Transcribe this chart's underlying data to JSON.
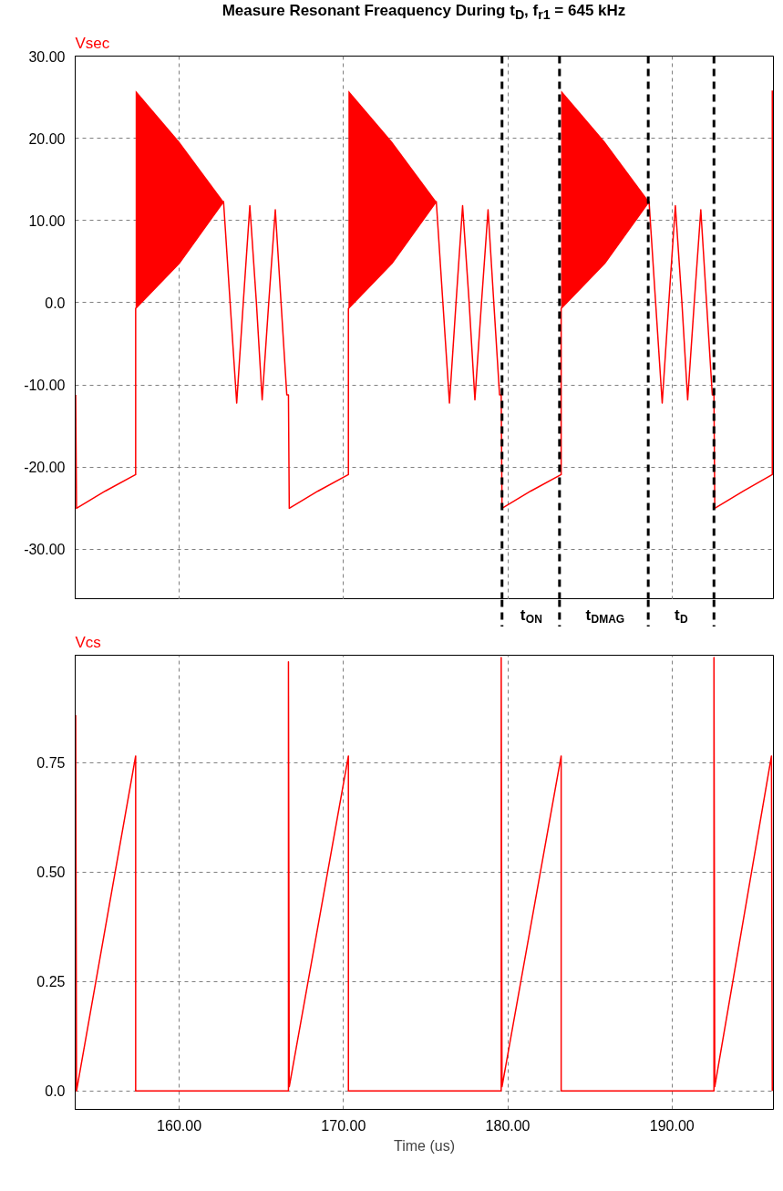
{
  "chart_data": [
    {
      "type": "line",
      "title": "Measure Resonant Freaquency During t$_{D}$, f$_{r1}$ = 645 kHz",
      "series": [
        {
          "name": "Vsec",
          "color": "#ff0000",
          "x": [
            153.7,
            153.75,
            155.5,
            157.35,
            157.35,
            160.0,
            162.7,
            163.1,
            163.5,
            163.9,
            164.3,
            164.7,
            165.05,
            165.45,
            165.85,
            166.2,
            166.55,
            166.65,
            166.7,
            168.45,
            170.3,
            170.3,
            172.95,
            175.65,
            176.05,
            176.45,
            176.85,
            177.25,
            177.65,
            178.0,
            178.4,
            178.8,
            179.15,
            179.5,
            179.6,
            179.65,
            181.4,
            183.25,
            183.25,
            185.9,
            188.6,
            189.0,
            189.4,
            189.8,
            190.2,
            190.6,
            190.95,
            191.35,
            191.75,
            192.1,
            192.45,
            192.55,
            192.6,
            194.35,
            196.1,
            196.1
          ],
          "values": [
            -11.2,
            -25,
            -22.9,
            -20.9,
            -0.7,
            4.8,
            12.3,
            0,
            -12.2,
            0,
            11.8,
            0,
            -11.8,
            0,
            11.3,
            0,
            -11.2,
            -11.2,
            -25,
            -22.9,
            -20.9,
            -0.7,
            4.8,
            12.3,
            0,
            -12.2,
            0,
            11.8,
            0,
            -11.8,
            0,
            11.3,
            0,
            -11.2,
            -11.2,
            -25,
            -22.9,
            -20.9,
            -0.7,
            4.8,
            12.3,
            0,
            -12.2,
            0,
            11.8,
            0,
            -11.8,
            0,
            11.3,
            0,
            -11.2,
            -11.2,
            -25,
            -22.9,
            -20.9,
            25.8
          ],
          "lower": [
            null,
            null,
            null,
            null,
            -0.7,
            4.8,
            12.3,
            null,
            null,
            null,
            null,
            null,
            null,
            null,
            null,
            null,
            null,
            null,
            null,
            null,
            null,
            -0.7,
            4.8,
            12.3,
            null,
            null,
            null,
            null,
            null,
            null,
            null,
            null,
            null,
            null,
            null,
            null,
            null,
            null,
            -0.7,
            4.8,
            12.3,
            null,
            null,
            null,
            null,
            null,
            null,
            null,
            null,
            null,
            null,
            null,
            null,
            null,
            null,
            null
          ],
          "upper": [
            null,
            null,
            null,
            null,
            25.8,
            19.6,
            12.3,
            null,
            null,
            null,
            null,
            null,
            null,
            null,
            null,
            null,
            null,
            null,
            null,
            null,
            null,
            25.8,
            19.6,
            12.3,
            null,
            null,
            null,
            null,
            null,
            null,
            null,
            null,
            null,
            null,
            null,
            null,
            null,
            null,
            25.8,
            19.6,
            12.3,
            null,
            null,
            null,
            null,
            null,
            null,
            null,
            null,
            null,
            null,
            null,
            null,
            null,
            null,
            null
          ]
        }
      ],
      "xlim": [
        153.67,
        196.17
      ],
      "xticks": [
        160,
        170,
        180,
        190
      ],
      "ylim": [
        -36.1,
        30
      ],
      "yticks": [
        {
          "value": 30,
          "label": "30.00"
        },
        {
          "value": 20,
          "label": "20.00"
        },
        {
          "value": 10,
          "label": "10.00"
        },
        {
          "value": 0,
          "label": "0.0"
        },
        {
          "value": -10,
          "label": "-10.00"
        },
        {
          "value": -20,
          "label": "-20.00"
        },
        {
          "value": -30,
          "label": "-30.00"
        }
      ],
      "tick_labels": "y",
      "grid": true,
      "ref_lines": [
        {
          "axis": "x",
          "value": 179.65,
          "color": "#000000",
          "line_style": "dashed"
        },
        {
          "axis": "x",
          "value": 183.15,
          "color": "#000000",
          "line_style": "dashed"
        },
        {
          "axis": "x",
          "value": 188.55,
          "color": "#000000",
          "line_style": "dashed"
        },
        {
          "axis": "x",
          "value": 192.55,
          "color": "#000000",
          "line_style": "dashed"
        }
      ],
      "annotations": [
        "t$_{ON}$",
        "t$_{DMAG}$",
        "t$_{D}$"
      ]
    },
    {
      "type": "line",
      "xlabel": "Time (us)",
      "series": [
        {
          "name": "Vcs",
          "color": "#ff0000",
          "x": [
            153.7,
            153.7,
            153.75,
            157.35,
            157.35,
            166.65,
            166.65,
            166.7,
            170.3,
            170.3,
            179.6,
            179.6,
            179.65,
            183.25,
            183.25,
            192.55,
            192.55,
            192.6,
            196.05,
            196.1
          ],
          "values": [
            0,
            0.857,
            0,
            0.765,
            0,
            0,
            0.98,
            0.01,
            0.765,
            0,
            0,
            0.99,
            0.01,
            0.765,
            0,
            0,
            0.99,
            0.01,
            0.765,
            0
          ]
        }
      ],
      "xlim": [
        153.67,
        196.17
      ],
      "xticks": [
        {
          "value": 160,
          "label": "160.00"
        },
        {
          "value": 170,
          "label": "170.00"
        },
        {
          "value": 180,
          "label": "180.00"
        },
        {
          "value": 190,
          "label": "190.00"
        }
      ],
      "ylim": [
        -0.042,
        0.995
      ],
      "yticks": [
        {
          "value": 0,
          "label": "0.0"
        },
        {
          "value": 0.25,
          "label": "0.25"
        },
        {
          "value": 0.5,
          "label": "0.50"
        },
        {
          "value": 0.75,
          "label": "0.75"
        }
      ],
      "grid": true
    }
  ]
}
